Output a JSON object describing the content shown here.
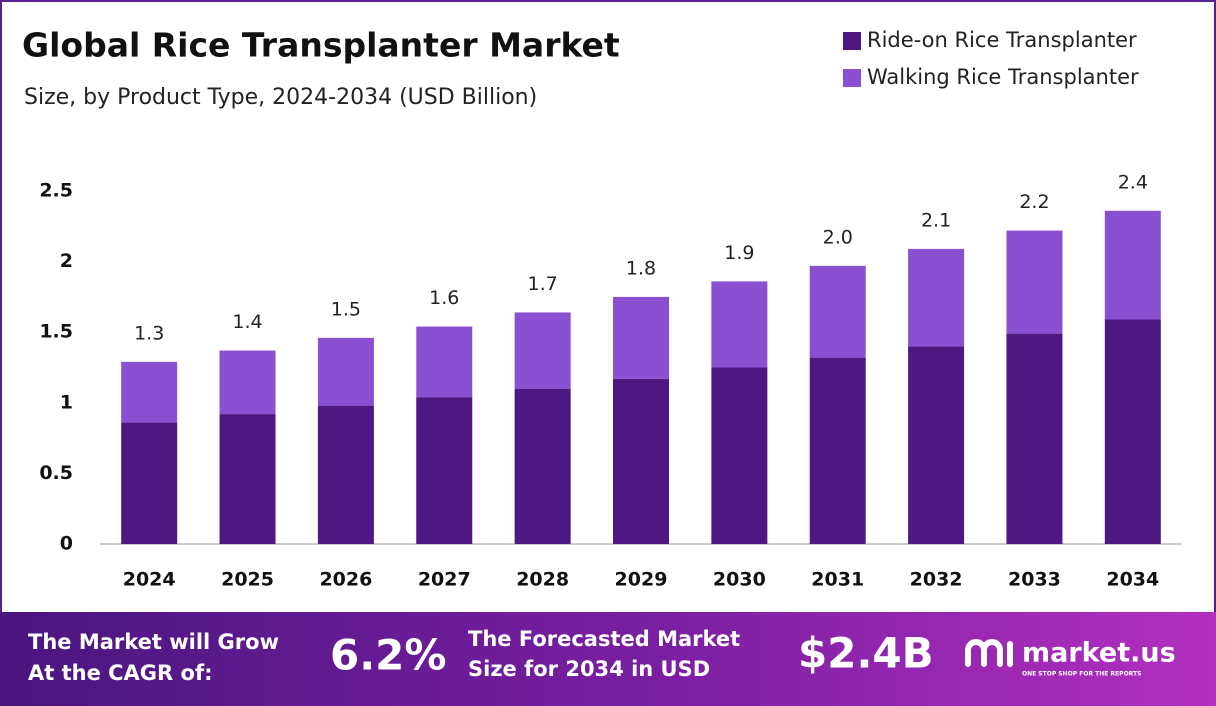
{
  "chart_data": {
    "type": "stacked_bar",
    "title": "Global Rice Transplanter Market",
    "subtitle": "Size, by Product Type, 2024-2034 (USD Billion)",
    "categories": [
      "2024",
      "2025",
      "2026",
      "2027",
      "2028",
      "2029",
      "2030",
      "2031",
      "2032",
      "2033",
      "2034"
    ],
    "series": [
      {
        "name": "Ride-on Rice Transplanter",
        "color": "#4e1781",
        "values": [
          0.86,
          0.92,
          0.98,
          1.04,
          1.1,
          1.17,
          1.25,
          1.32,
          1.4,
          1.49,
          1.59
        ]
      },
      {
        "name": "Walking Rice Transplanter",
        "color": "#8b4fd2",
        "values": [
          0.43,
          0.45,
          0.48,
          0.5,
          0.54,
          0.58,
          0.61,
          0.65,
          0.69,
          0.73,
          0.77
        ]
      }
    ],
    "total_labels": [
      "1.3",
      "1.4",
      "1.5",
      "1.6",
      "1.7",
      "1.8",
      "1.9",
      "2.0",
      "2.1",
      "2.2",
      "2.4"
    ],
    "ylim": [
      0,
      2.5
    ],
    "yticks": [
      0,
      0.5,
      1,
      1.5,
      2,
      2.5
    ],
    "grid": false,
    "legend": "top-right"
  },
  "footer": {
    "cagr_text_1": "The Market will Grow",
    "cagr_text_2": "At the CAGR of:",
    "cagr": "6.2%",
    "forecast_text_1": "The Forecasted Market",
    "forecast_text_2": "Size for 2034 in USD",
    "forecast": "$2.4B",
    "brand": "market.us",
    "tagline": "ONE STOP SHOP FOR THE REPORTS"
  }
}
